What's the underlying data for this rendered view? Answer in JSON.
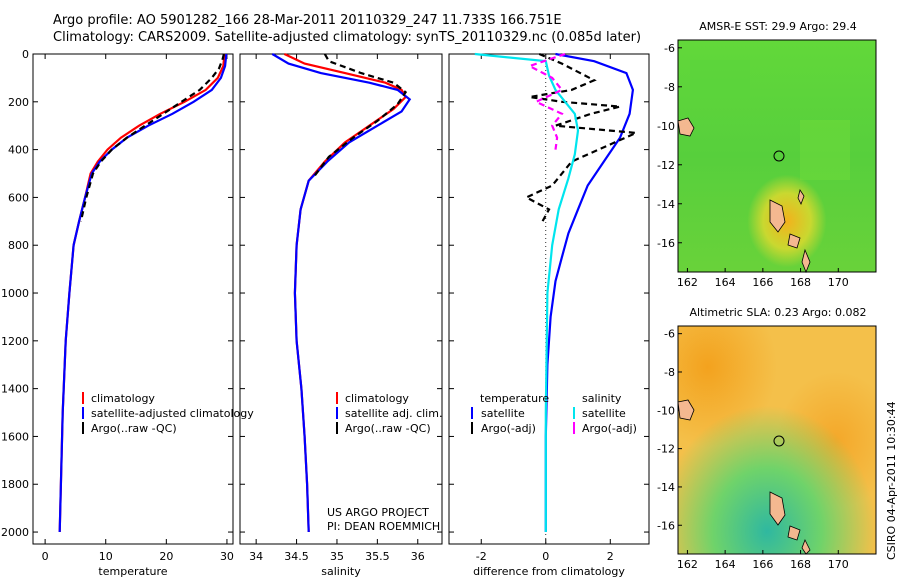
{
  "header": {
    "line1": "Argo profile: AO 5901282_166 28-Mar-2011 20110329_247 11.733S 166.751E",
    "line2": "Climatology: CARS2009. Satellite-adjusted climatology: synTS_20110329.nc (0.085d later)"
  },
  "side_stamp": "CSIRO 04-Apr-2011 10:30:44",
  "credit": {
    "line1": "US ARGO PROJECT",
    "line2": "PI: DEAN ROEMMICH"
  },
  "colors": {
    "climatology": "#ff0000",
    "satellite": "#0000ff",
    "argo": "#000000",
    "sat_sal": "#00e5ee",
    "argo_sal": "#ff00ff"
  },
  "chart_data": [
    {
      "type": "line",
      "id": "temperature",
      "xlabel": "temperature",
      "ylabel": "",
      "xlim": [
        -2,
        31
      ],
      "ylim": [
        2050,
        0
      ],
      "xticks": [
        0,
        10,
        20,
        30
      ],
      "yticks": [
        0,
        200,
        400,
        600,
        800,
        1000,
        1200,
        1400,
        1600,
        1800,
        2000
      ],
      "legend": [
        "climatology",
        "satellite-adjusted climatology",
        "Argo(..raw -QC)"
      ],
      "series": [
        {
          "name": "climatology",
          "color": "#ff0000",
          "dash": "",
          "x": [
            29.6,
            29.4,
            28.5,
            26.5,
            23,
            19,
            15.5,
            12.5,
            10.3,
            8.7,
            7.5,
            6.6,
            5.6,
            4.7,
            4.0,
            3.4,
            2.9,
            2.6,
            2.4
          ],
          "y": [
            0,
            50,
            100,
            150,
            200,
            250,
            300,
            350,
            400,
            450,
            500,
            600,
            700,
            800,
            1000,
            1200,
            1500,
            1800,
            2000
          ]
        },
        {
          "name": "satellite-adjusted climatology",
          "color": "#0000ff",
          "dash": "",
          "x": [
            29.9,
            29.7,
            29.0,
            27.5,
            24.5,
            21,
            17,
            13.5,
            11.0,
            9.0,
            7.7,
            6.6,
            5.6,
            4.7,
            4.0,
            3.4,
            2.9,
            2.6,
            2.4
          ],
          "y": [
            0,
            50,
            100,
            150,
            200,
            250,
            300,
            350,
            400,
            450,
            500,
            600,
            700,
            800,
            1000,
            1200,
            1500,
            1800,
            2000
          ]
        },
        {
          "name": "Argo(..raw -QC)",
          "color": "#000000",
          "dash": "6,4",
          "x": [
            29.5,
            29.3,
            28.7,
            27.5,
            25.5,
            22.5,
            19.5,
            16.5,
            13.5,
            11.0,
            9.2,
            7.9,
            6.8,
            5.9
          ],
          "y": [
            0,
            20,
            60,
            100,
            150,
            200,
            250,
            300,
            350,
            400,
            450,
            500,
            600,
            700
          ]
        }
      ]
    },
    {
      "type": "line",
      "id": "salinity",
      "xlabel": "salinity",
      "ylabel": "",
      "xlim": [
        33.8,
        36.3
      ],
      "ylim": [
        2050,
        0
      ],
      "xticks": [
        34,
        34.5,
        35,
        35.5,
        36
      ],
      "legend": [
        "climatology",
        "satellite adj. clim.",
        "Argo(..raw -QC)"
      ],
      "series": [
        {
          "name": "climatology",
          "color": "#ff0000",
          "dash": "",
          "x": [
            34.35,
            34.6,
            35.1,
            35.6,
            35.8,
            35.85,
            35.7,
            35.4,
            35.1,
            34.85,
            34.65,
            34.55,
            34.5,
            34.48,
            34.5,
            34.56,
            34.6,
            34.63,
            34.65
          ],
          "y": [
            0,
            40,
            80,
            120,
            150,
            180,
            230,
            300,
            370,
            450,
            530,
            650,
            800,
            1000,
            1200,
            1400,
            1600,
            1800,
            2000
          ]
        },
        {
          "name": "satellite adj. clim.",
          "color": "#0000ff",
          "dash": "",
          "x": [
            34.2,
            34.4,
            34.8,
            35.4,
            35.75,
            35.9,
            35.8,
            35.5,
            35.15,
            34.88,
            34.65,
            34.55,
            34.5,
            34.48,
            34.5,
            34.56,
            34.6,
            34.63,
            34.65
          ],
          "y": [
            0,
            40,
            80,
            120,
            150,
            190,
            240,
            300,
            370,
            450,
            530,
            650,
            800,
            1000,
            1200,
            1400,
            1600,
            1800,
            2000
          ]
        },
        {
          "name": "Argo(..raw -QC)",
          "color": "#000000",
          "dash": "6,4",
          "x": [
            34.85,
            34.9,
            35.3,
            35.7,
            35.85,
            35.75,
            35.5,
            35.2,
            34.9,
            34.7
          ],
          "y": [
            0,
            30,
            80,
            120,
            160,
            210,
            280,
            350,
            430,
            520
          ]
        }
      ]
    },
    {
      "type": "line",
      "id": "difference",
      "xlabel": "difference from climatology",
      "ylabel": "",
      "xlim": [
        -3,
        3.2
      ],
      "ylim": [
        2050,
        0
      ],
      "xticks": [
        -2,
        0,
        2
      ],
      "legend_headers": [
        "temperature",
        "salinity"
      ],
      "legend": [
        "satellite",
        "Argo(-adj)",
        "satellite",
        "Argo(-adj)"
      ],
      "series": [
        {
          "name": "satellite",
          "color": "#0000ff",
          "dash": "",
          "x": [
            0.3,
            1.5,
            2.5,
            2.7,
            2.6,
            2.3,
            1.8,
            1.3,
            1.0,
            0.7,
            0.5,
            0.3,
            0.15,
            0.05,
            0,
            0
          ],
          "y": [
            0,
            30,
            80,
            150,
            250,
            350,
            450,
            550,
            650,
            750,
            850,
            950,
            1100,
            1300,
            1600,
            2000
          ]
        },
        {
          "name": "Argo(-adj)",
          "color": "#000000",
          "dash": "6,4",
          "x": [
            -0.2,
            0.5,
            1.5,
            0.8,
            -0.5,
            0.5,
            2.3,
            1.4,
            0.3,
            2.8,
            0.8,
            0.2,
            -0.6,
            0.1,
            -0.1
          ],
          "y": [
            0,
            40,
            110,
            150,
            180,
            200,
            220,
            250,
            300,
            330,
            450,
            550,
            600,
            650,
            700
          ]
        },
        {
          "name": "satellite",
          "color": "#00e5ee",
          "dash": "",
          "x": [
            -2.2,
            0,
            0.1,
            0.3,
            0.6,
            0.9,
            1.0,
            0.9,
            0.7,
            0.4,
            0.2,
            0.05,
            0,
            0
          ],
          "y": [
            0,
            30,
            90,
            150,
            200,
            250,
            320,
            420,
            520,
            650,
            800,
            1000,
            1500,
            2000
          ]
        },
        {
          "name": "Argo(-adj)",
          "color": "#ff00ff",
          "dash": "6,4",
          "x": [
            0.6,
            -0.5,
            0.2,
            0.5,
            -0.3,
            0.5,
            0.2,
            0.35,
            0.3
          ],
          "y": [
            0,
            50,
            100,
            150,
            200,
            250,
            300,
            350,
            400
          ]
        }
      ]
    },
    {
      "type": "heatmap",
      "id": "sst_map",
      "title": "AMSR-E SST: 29.9 Argo: 29.4",
      "xticks": [
        162,
        164,
        166,
        168,
        170
      ],
      "yticks": [
        -6,
        -8,
        -10,
        -12,
        -14,
        -16
      ],
      "xlim": [
        161.5,
        172
      ],
      "ylim": [
        -17.5,
        -5.6
      ],
      "argo_marker": {
        "lon": 166.751,
        "lat": -11.733
      }
    },
    {
      "type": "heatmap",
      "id": "sla_map",
      "title": "Altimetric SLA: 0.23 Argo: 0.082",
      "xticks": [
        162,
        164,
        166,
        168,
        170
      ],
      "yticks": [
        -6,
        -8,
        -10,
        -12,
        -14,
        -16
      ],
      "xlim": [
        161.5,
        172
      ],
      "ylim": [
        -17.5,
        -5.6
      ],
      "argo_marker": {
        "lon": 166.751,
        "lat": -11.733
      }
    }
  ]
}
